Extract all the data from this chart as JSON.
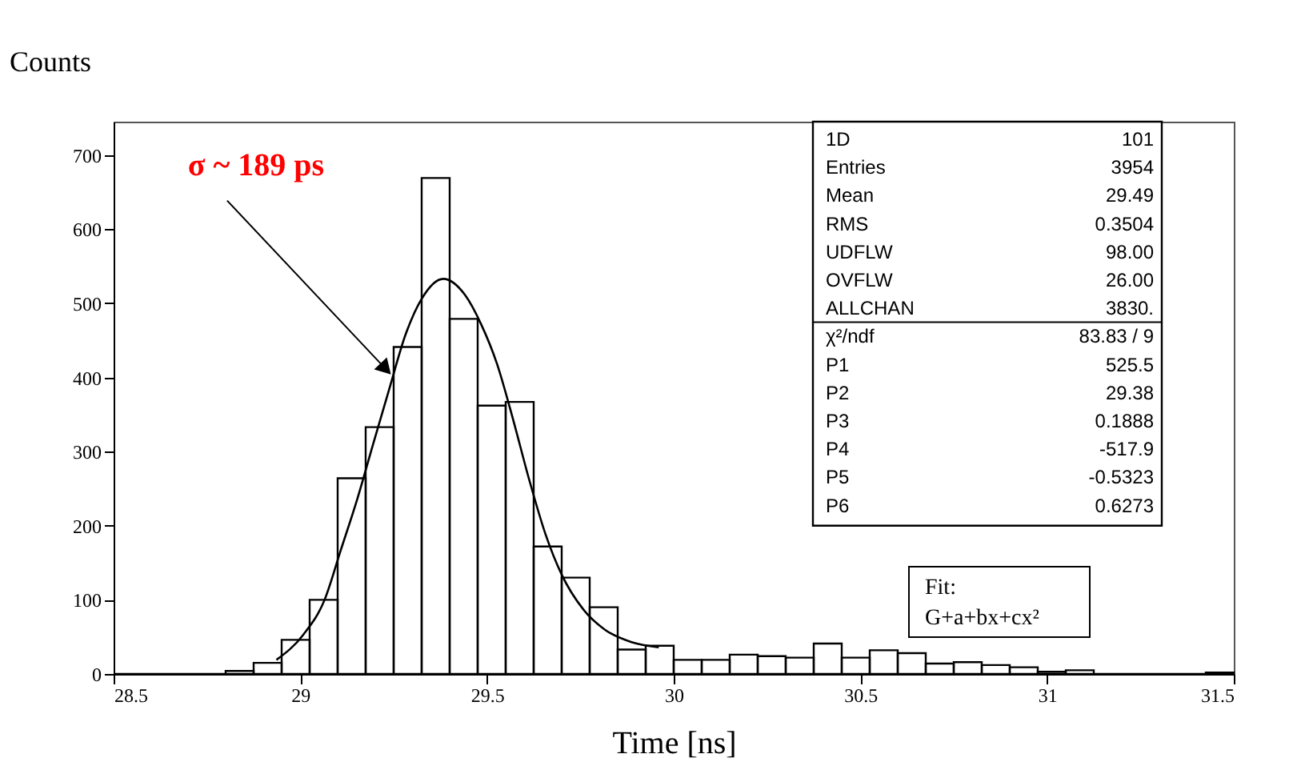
{
  "chart_data": {
    "type": "histogram",
    "xlabel": "Time [ns]",
    "ylabel": "Counts",
    "bins": [
      28.5,
      28.575,
      28.65,
      28.725,
      28.8,
      28.875,
      28.95,
      29.025,
      29.1,
      29.175,
      29.25,
      29.325,
      29.4,
      29.475,
      29.55,
      29.625,
      29.7,
      29.775,
      29.85,
      29.925,
      30.0,
      30.075,
      30.15,
      30.225,
      30.3,
      30.375,
      30.45,
      30.525,
      30.6,
      30.675,
      30.75,
      30.825,
      30.9,
      30.975,
      31.05,
      31.125,
      31.2,
      31.275,
      31.35,
      31.425,
      31.5
    ],
    "values": [
      0,
      0,
      0,
      0,
      4,
      15,
      46,
      100,
      264,
      333,
      441,
      669,
      479,
      362,
      367,
      172,
      130,
      90,
      33,
      38,
      19,
      19,
      26,
      24,
      22,
      41,
      22,
      32,
      28,
      14,
      16,
      12,
      9,
      3,
      5,
      0,
      0,
      0,
      0,
      2
    ],
    "color": "#000000",
    "series": [
      {
        "type": "line",
        "color": "#000000",
        "x": [
          28.936,
          29.008,
          29.065,
          29.109,
          29.152,
          29.195,
          29.238,
          29.282,
          29.325,
          29.383,
          29.44,
          29.484,
          29.527,
          29.57,
          29.613,
          29.657,
          29.7,
          29.758,
          29.815,
          29.887,
          29.96
        ],
        "values": [
          19,
          53,
          100,
          168,
          235,
          310,
          384,
          458,
          506,
          533,
          512,
          472,
          418,
          343,
          262,
          188,
          134,
          87,
          60,
          43,
          36
        ]
      }
    ],
    "xlim": [
      28.5,
      31.5
    ],
    "ylim": [
      0,
      745
    ],
    "xticks": [
      28.5,
      29,
      29.5,
      30,
      30.5,
      31,
      31.5
    ],
    "yticks": [
      0,
      100,
      200,
      300,
      400,
      500,
      600,
      700
    ],
    "grid": false,
    "annotations": [
      {
        "text": "σ ~ 189 ps",
        "x": 29.224,
        "y": 414
      },
      "1D",
      "101",
      "Entries",
      "3954",
      "Mean",
      "29.49",
      "RMS",
      "0.3504",
      "UDFLW",
      "98.00",
      "OVFLW",
      "26.00",
      "ALLCHAN",
      "3830.",
      "χ²/ndf",
      "83.83  /  9",
      "P1",
      "525.5",
      "P2",
      "29.38",
      "P3",
      "0.1888",
      "P4",
      "-517.9",
      "P5",
      "-0.5323",
      "P6",
      "0.6273",
      "Fit:",
      "G+a+bx+cx²"
    ]
  }
}
